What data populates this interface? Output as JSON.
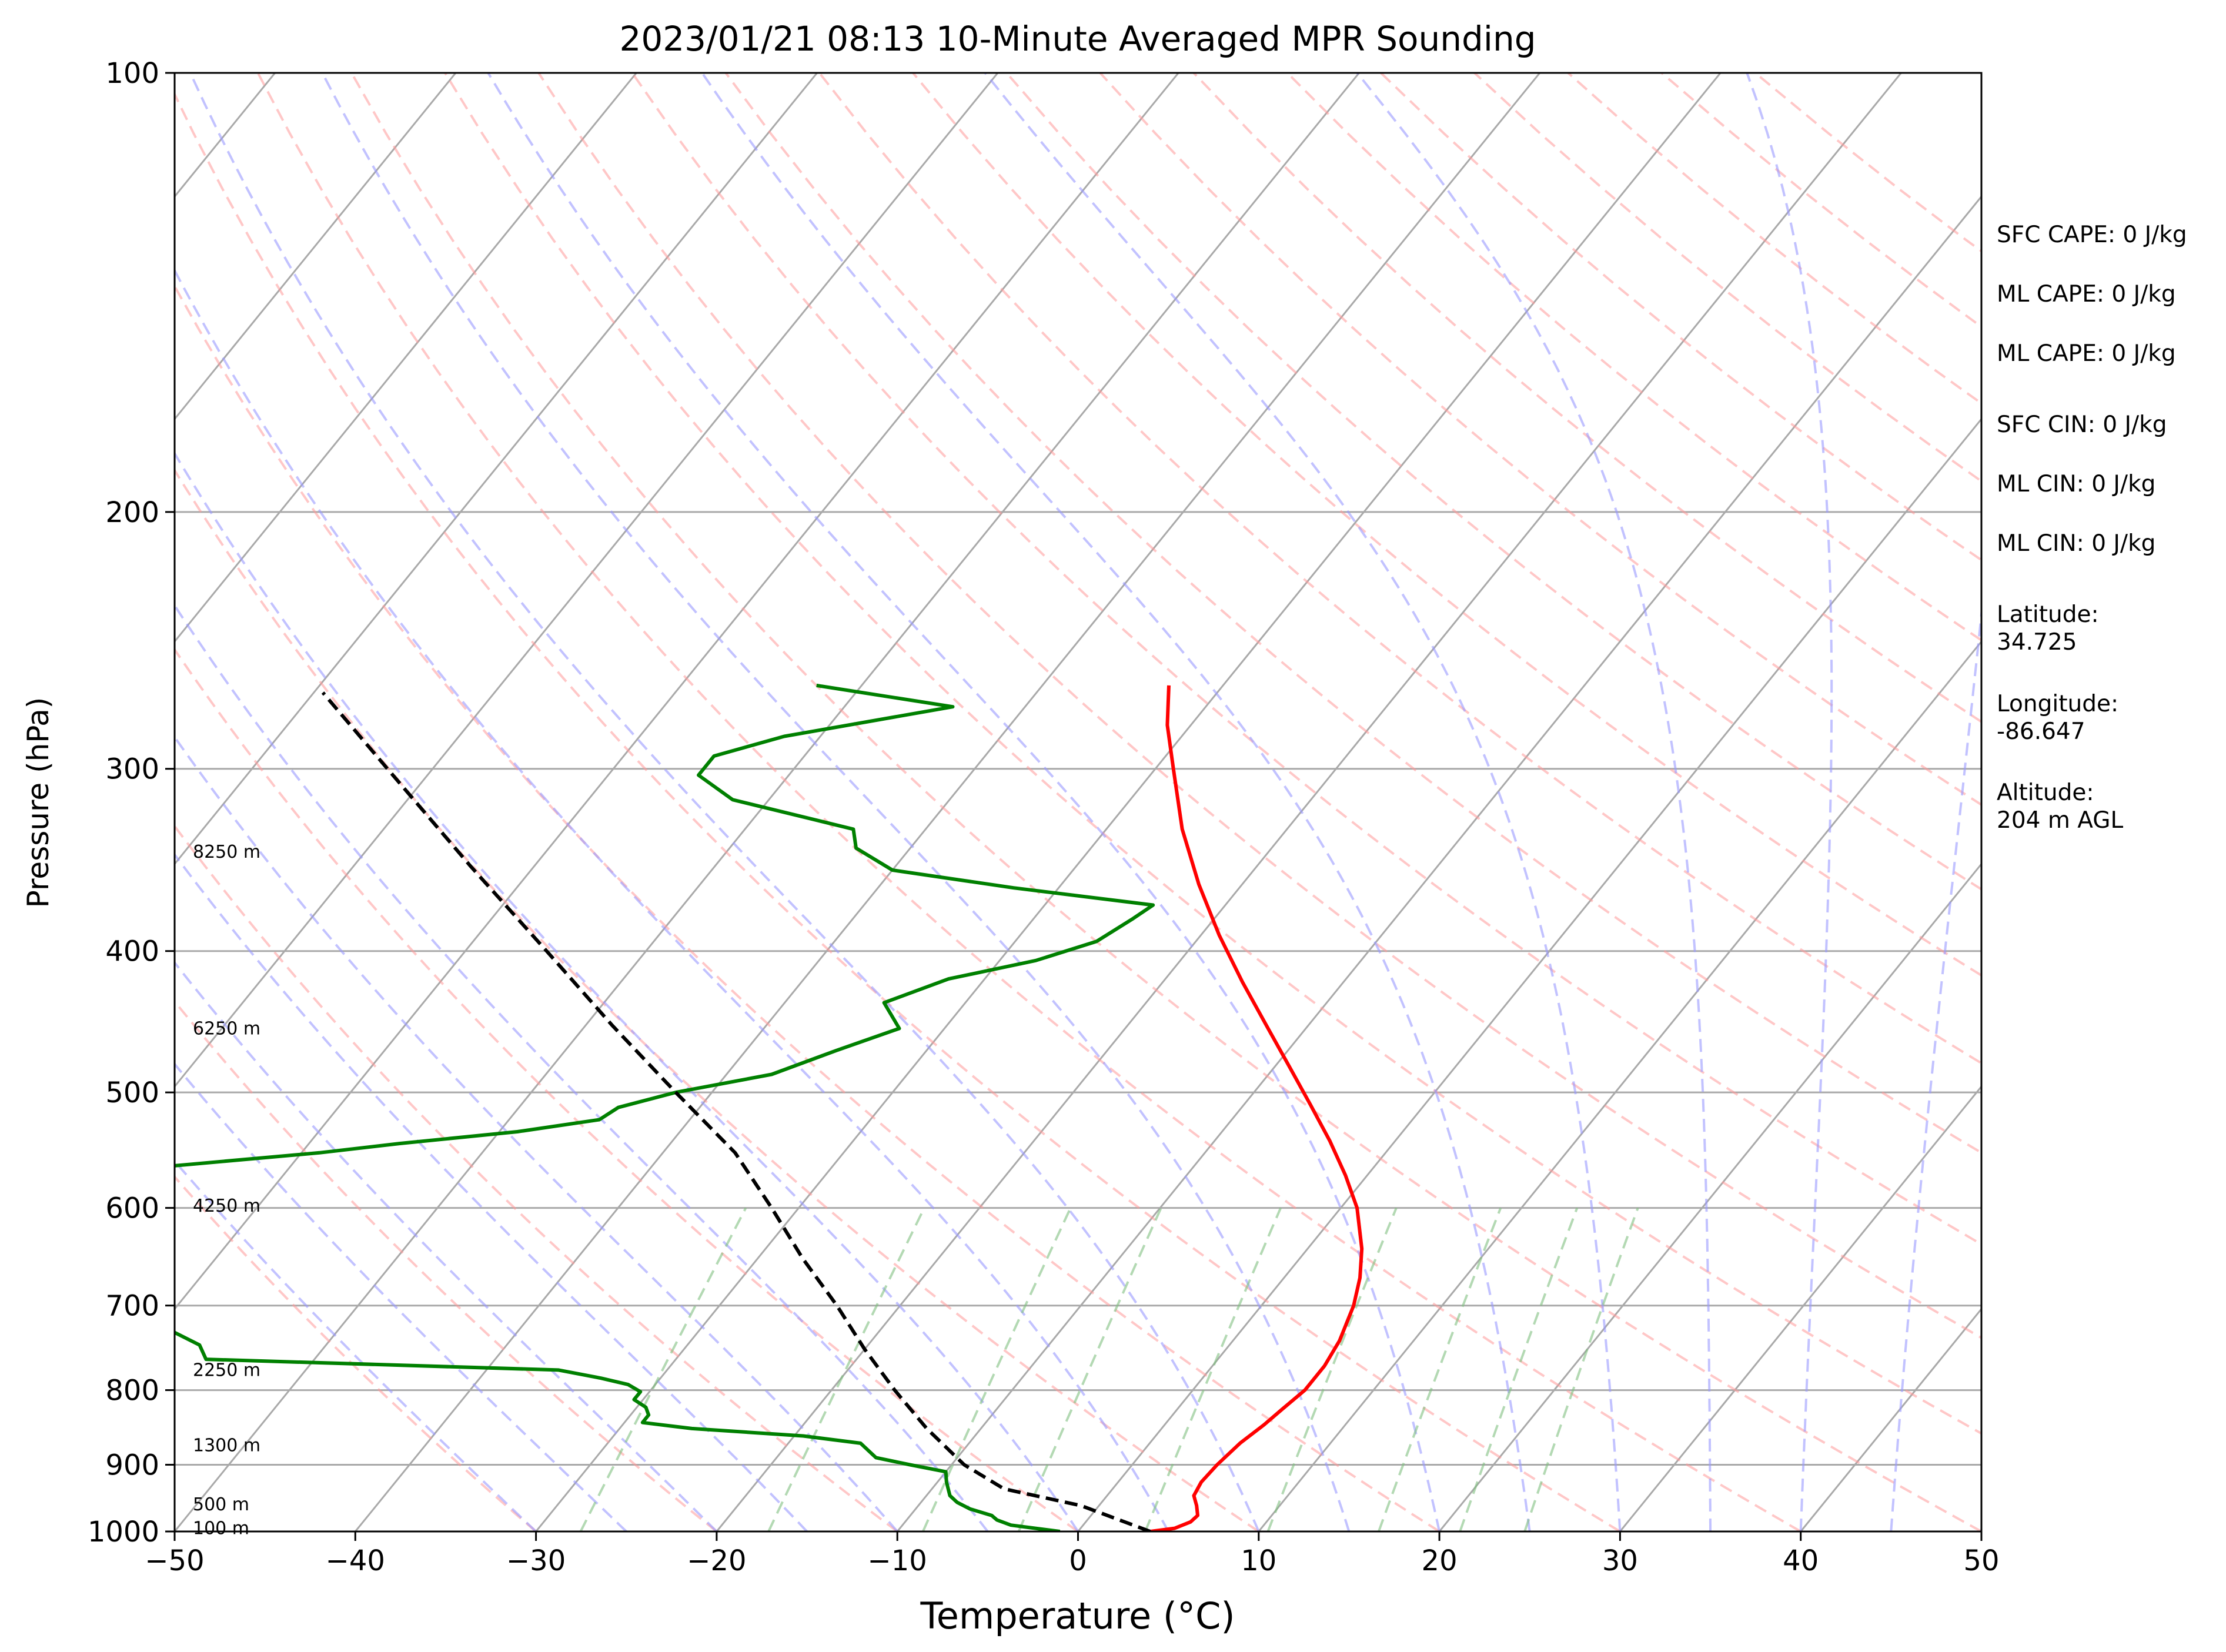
{
  "chart_data": {
    "type": "line",
    "subtype": "skew-t log-p sounding",
    "title": "2023/01/21 08:13 10-Minute Averaged MPR Sounding",
    "xlabel": "Temperature (°C)",
    "ylabel": "Pressure (hPa)",
    "xlim": [
      -50,
      50
    ],
    "ylim": [
      1000,
      100
    ],
    "y_scale": "log",
    "x_ticks": [
      "−50",
      "−40",
      "−30",
      "−20",
      "−10",
      "0",
      "10",
      "20",
      "30",
      "40",
      "50"
    ],
    "y_ticks": [
      "100",
      "200",
      "300",
      "400",
      "500",
      "600",
      "700",
      "800",
      "900",
      "1000"
    ],
    "grid": true,
    "colors": {
      "temperature": "#ff0000",
      "dewpoint": "#008000",
      "parcel": "#000000",
      "isotherm": "#a9a9a9",
      "dry_adiabat": "#ff9999",
      "moist_adiabat": "#9999ff",
      "mixing_ratio": "#80c080"
    },
    "height_labels": [
      {
        "text": "8250 m",
        "p": 342
      },
      {
        "text": "6250 m",
        "p": 452
      },
      {
        "text": "4250 m",
        "p": 598
      },
      {
        "text": "2250 m",
        "p": 775
      },
      {
        "text": "1300 m",
        "p": 873
      },
      {
        "text": "500 m",
        "p": 958
      },
      {
        "text": "100 m",
        "p": 995
      }
    ],
    "series": [
      {
        "key": "temperature",
        "values": [
          [
            1000,
            4.0
          ],
          [
            995,
            5.2
          ],
          [
            985,
            5.8
          ],
          [
            975,
            5.9
          ],
          [
            960,
            5.4
          ],
          [
            945,
            4.8
          ],
          [
            925,
            4.6
          ],
          [
            900,
            4.7
          ],
          [
            870,
            5.0
          ],
          [
            845,
            5.5
          ],
          [
            825,
            5.8
          ],
          [
            800,
            6.2
          ],
          [
            770,
            6.2
          ],
          [
            740,
            5.9
          ],
          [
            700,
            5.1
          ],
          [
            670,
            4.2
          ],
          [
            640,
            3.0
          ],
          [
            600,
            0.9
          ],
          [
            570,
            -1.2
          ],
          [
            540,
            -3.6
          ],
          [
            510,
            -6.3
          ],
          [
            480,
            -9.2
          ],
          [
            450,
            -12.3
          ],
          [
            420,
            -15.6
          ],
          [
            390,
            -19.0
          ],
          [
            360,
            -22.4
          ],
          [
            330,
            -25.8
          ],
          [
            300,
            -29.0
          ],
          [
            280,
            -31.3
          ],
          [
            263,
            -33.0
          ]
        ]
      },
      {
        "key": "dewpoint",
        "values": [
          [
            1000,
            -1.0
          ],
          [
            995,
            -2.5
          ],
          [
            990,
            -4.0
          ],
          [
            982,
            -5.0
          ],
          [
            975,
            -5.5
          ],
          [
            965,
            -7.0
          ],
          [
            955,
            -8.0
          ],
          [
            945,
            -8.7
          ],
          [
            925,
            -9.5
          ],
          [
            910,
            -10.0
          ],
          [
            900,
            -12.3
          ],
          [
            890,
            -14.5
          ],
          [
            870,
            -16.0
          ],
          [
            860,
            -19.5
          ],
          [
            850,
            -26.0
          ],
          [
            842,
            -29.0
          ],
          [
            832,
            -29.0
          ],
          [
            822,
            -29.5
          ],
          [
            812,
            -30.5
          ],
          [
            802,
            -30.5
          ],
          [
            793,
            -31.5
          ],
          [
            785,
            -33.3
          ],
          [
            775,
            -36.0
          ],
          [
            762,
            -56.0
          ],
          [
            745,
            -57.0
          ],
          [
            730,
            -59.0
          ],
          [
            718,
            -66.0
          ],
          [
            700,
            -85.0
          ],
          [
            596,
            -82.5
          ],
          [
            586,
            -80.0
          ],
          [
            570,
            -72.0
          ],
          [
            550,
            -59.0
          ],
          [
            542,
            -55.0
          ],
          [
            532,
            -49.0
          ],
          [
            522,
            -45.0
          ],
          [
            512,
            -44.5
          ],
          [
            500,
            -42.0
          ],
          [
            486,
            -37.5
          ],
          [
            468,
            -35.0
          ],
          [
            452,
            -32.5
          ],
          [
            434,
            -34.5
          ],
          [
            418,
            -32.0
          ],
          [
            406,
            -28.0
          ],
          [
            394,
            -25.5
          ],
          [
            380,
            -24.5
          ],
          [
            372,
            -24.0
          ],
          [
            362,
            -32.5
          ],
          [
            352,
            -40.0
          ],
          [
            340,
            -43.0
          ],
          [
            330,
            -44.0
          ],
          [
            315,
            -52.0
          ],
          [
            303,
            -55.0
          ],
          [
            294,
            -55.0
          ],
          [
            285,
            -52.0
          ],
          [
            272,
            -44.0
          ],
          [
            263,
            -52.5
          ]
        ]
      },
      {
        "key": "parcel",
        "values": [
          [
            1000,
            4.0
          ],
          [
            960,
            -1.0
          ],
          [
            935,
            -6.0
          ],
          [
            900,
            -9.3
          ],
          [
            850,
            -13.0
          ],
          [
            800,
            -16.5
          ],
          [
            750,
            -20.0
          ],
          [
            700,
            -23.5
          ],
          [
            650,
            -27.5
          ],
          [
            600,
            -31.5
          ],
          [
            550,
            -36.0
          ],
          [
            500,
            -42.0
          ],
          [
            450,
            -48.5
          ],
          [
            400,
            -55.5
          ],
          [
            350,
            -63.5
          ],
          [
            300,
            -72.5
          ],
          [
            266,
            -79.5
          ]
        ]
      }
    ]
  },
  "info_panel": {
    "sfc_cape": "SFC CAPE: 0 J/kg",
    "ml_cape_1": "ML CAPE: 0 J/kg",
    "ml_cape_2": "ML CAPE: 0 J/kg",
    "sfc_cin": "SFC CIN: 0 J/kg",
    "ml_cin_1": "ML CIN: 0 J/kg",
    "ml_cin_2": "ML CIN: 0 J/kg",
    "latitude": "Latitude:\n34.725",
    "longitude": "Longitude:\n-86.647",
    "altitude": "Altitude:\n204 m AGL"
  }
}
